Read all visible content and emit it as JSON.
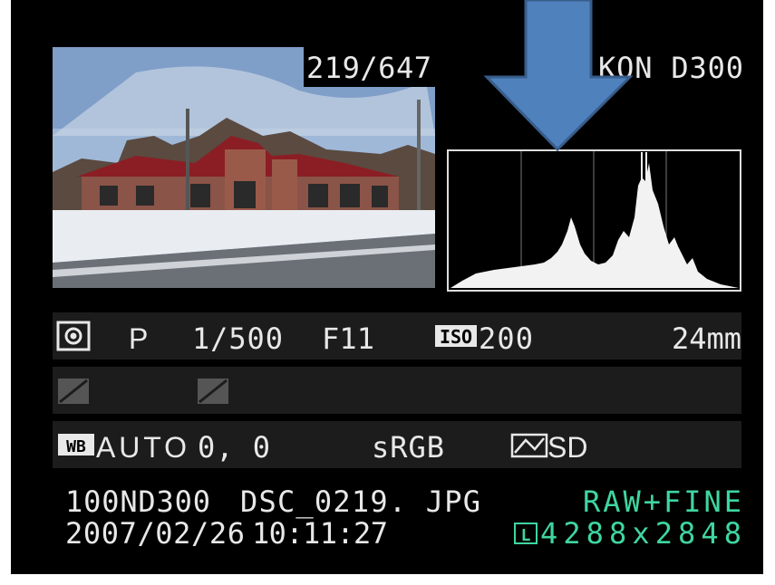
{
  "image": {
    "counter": "219/647",
    "camera": "KON D300"
  },
  "shooting": {
    "mode": "P",
    "shutter": "1/500",
    "aperture": "F11",
    "iso_icon": "ISO",
    "iso": "200",
    "focal_length": "24mm"
  },
  "picture": {
    "wb_icon": "WB",
    "wb_mode": "AUTO",
    "wb_fine_tune": "0,  0",
    "color_space": "sRGB",
    "picture_control": "SD"
  },
  "file": {
    "folder": "100ND300",
    "name": "DSC_0219. JPG",
    "quality": "RAW+FINE",
    "date": "2007/02/26",
    "time": "10:11:27",
    "size_icon": "L",
    "size": "4288x2848"
  }
}
